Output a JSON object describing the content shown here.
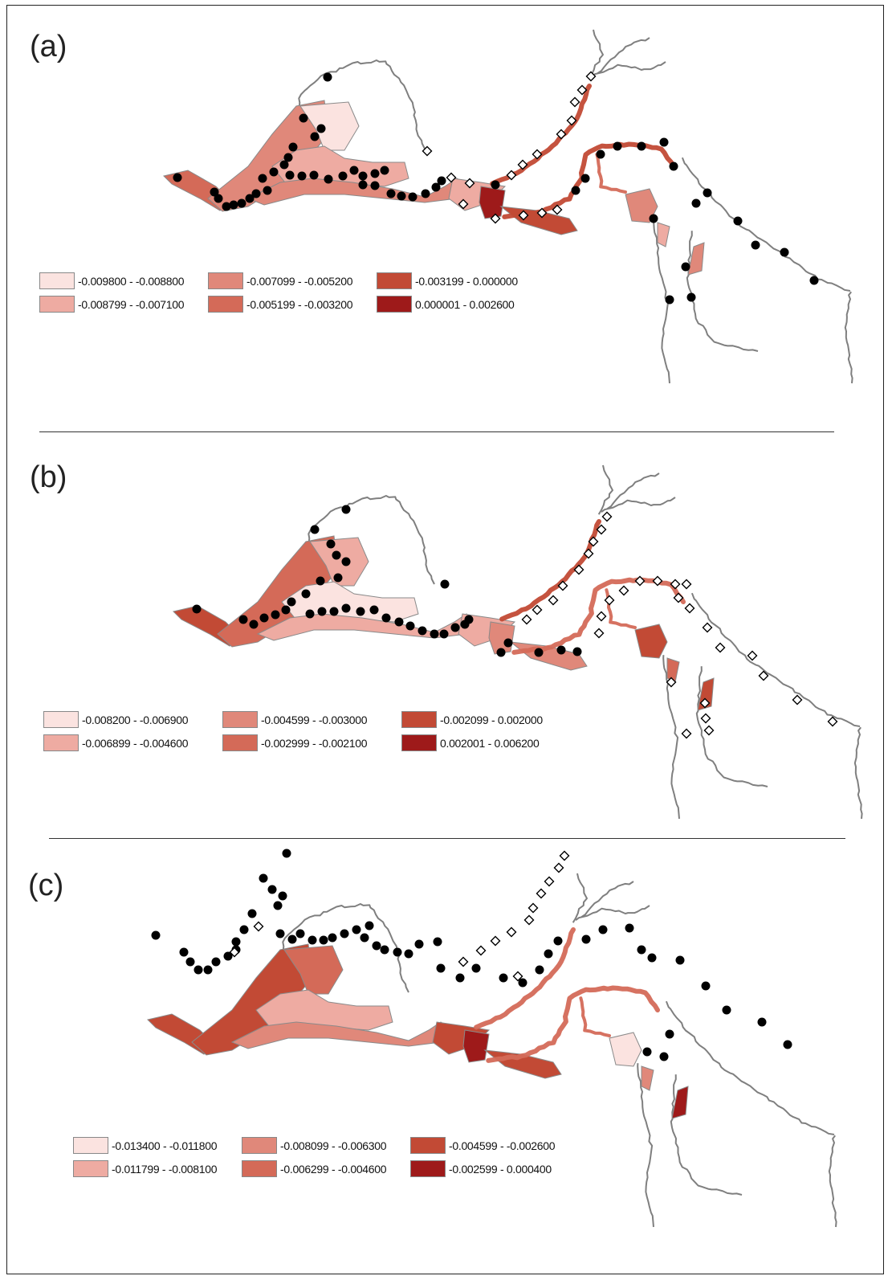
{
  "figure": {
    "colors": {
      "class1": "#fbe3e0",
      "class2": "#eeaba2",
      "class3": "#e0887a",
      "class4": "#d46a58",
      "class5": "#c24a35",
      "class6": "#9e1a1a",
      "outline": "#8a8a8a",
      "river": "#7f7f7f",
      "site_filled": "#000000",
      "site_open": "#ffffff"
    },
    "symbols": {
      "filled_site": "filled-circle",
      "open_site": "open-diamond"
    },
    "panels": [
      {
        "label": "(a)",
        "legend": [
          "-0.009800 - -0.008800",
          "-0.008799 - -0.007100",
          "-0.007099 - -0.005200",
          "-0.005199 - -0.003200",
          "-0.003199 - 0.000000",
          "0.000001 - 0.002600"
        ]
      },
      {
        "label": "(b)",
        "legend": [
          "-0.008200 - -0.006900",
          "-0.006899 - -0.004600",
          "-0.004599 - -0.003000",
          "-0.002999 - -0.002100",
          "-0.002099 - 0.002000",
          "0.002001 - 0.006200"
        ]
      },
      {
        "label": "(c)",
        "legend": [
          "-0.013400 - -0.011800",
          "-0.011799 - -0.008100",
          "-0.008099 - -0.006300",
          "-0.006299 - -0.004600",
          "-0.004599 - -0.002600",
          "-0.002599 - 0.000400"
        ]
      }
    ]
  }
}
